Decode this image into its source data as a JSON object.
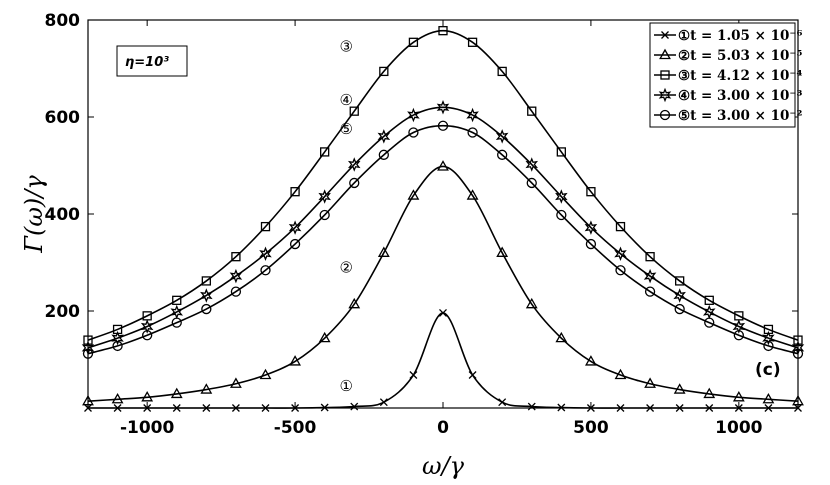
{
  "chart_data": {
    "type": "line",
    "xlabel": "ω/γ",
    "ylabel": "Γ(ω)/γ",
    "xlim": [
      -1200,
      1200
    ],
    "ylim": [
      0,
      800
    ],
    "xticks": [
      -1000,
      -500,
      0,
      500,
      1000
    ],
    "xtick_labels": [
      "-1000",
      "-500",
      "0",
      "500",
      "1000"
    ],
    "yticks": [
      200,
      400,
      600,
      800
    ],
    "ytick_labels": [
      "200",
      "400",
      "600",
      "800"
    ],
    "grid": false,
    "legend_position": "top-right",
    "parameter_box": "η=10³",
    "panel_label": "(c)",
    "x": [
      -1200,
      -1100,
      -1000,
      -900,
      -800,
      -700,
      -600,
      -500,
      -400,
      -300,
      -200,
      -100,
      0,
      100,
      200,
      300,
      400,
      500,
      600,
      700,
      800,
      900,
      1000,
      1100,
      1200
    ],
    "series": [
      {
        "name": "①t = 1.05 × 10⁻⁶",
        "curve_label": "①",
        "marker": "x",
        "values": [
          0,
          0,
          0,
          0,
          0,
          0,
          0,
          0,
          1,
          3,
          12,
          68,
          196,
          68,
          12,
          3,
          1,
          0,
          0,
          0,
          0,
          0,
          0,
          0,
          0
        ]
      },
      {
        "name": "②t = 5.03 × 10⁻⁵",
        "curve_label": "②",
        "marker": "triangle",
        "values": [
          14,
          18,
          22,
          29,
          38,
          50,
          68,
          96,
          144,
          214,
          320,
          438,
          498,
          438,
          320,
          214,
          144,
          96,
          68,
          50,
          38,
          29,
          22,
          18,
          14
        ]
      },
      {
        "name": "③t = 4.12 × 10⁻⁴",
        "curve_label": "③",
        "marker": "square",
        "values": [
          140,
          162,
          190,
          222,
          262,
          312,
          374,
          446,
          528,
          612,
          694,
          754,
          778,
          754,
          694,
          612,
          528,
          446,
          374,
          312,
          262,
          222,
          190,
          162,
          140
        ]
      },
      {
        "name": "④t = 3.00 × 10⁻³",
        "curve_label": "④",
        "marker": "star",
        "values": [
          124,
          144,
          168,
          198,
          232,
          272,
          318,
          372,
          436,
          502,
          560,
          604,
          620,
          604,
          560,
          502,
          436,
          372,
          318,
          272,
          232,
          198,
          168,
          144,
          124
        ]
      },
      {
        "name": "⑤t = 3.00 × 10⁻²",
        "curve_label": "⑤",
        "marker": "circle",
        "values": [
          112,
          128,
          150,
          176,
          204,
          240,
          284,
          338,
          398,
          464,
          522,
          568,
          582,
          568,
          522,
          464,
          398,
          338,
          284,
          240,
          204,
          176,
          150,
          128,
          112
        ]
      }
    ]
  }
}
